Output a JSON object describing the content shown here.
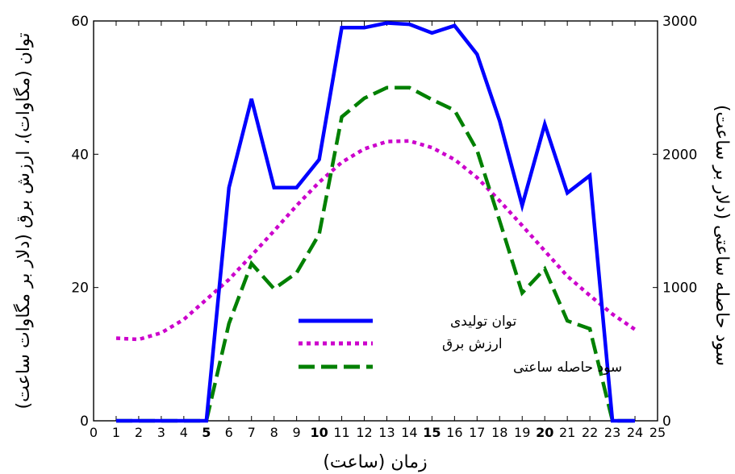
{
  "chart_data": {
    "type": "line",
    "xlabel": "زمان (ساعت)",
    "ylabel_left": "توان (مگاوات)، ارزش برق (دلار بر مگاوات ساعت)",
    "ylabel_right": "سود حاصله ساعتی (دلار بر ساعت)",
    "xlim": [
      0,
      25
    ],
    "ylim_left": [
      0,
      60
    ],
    "ylim_right": [
      0,
      3000
    ],
    "x_ticks": [
      0,
      1,
      2,
      3,
      4,
      5,
      6,
      7,
      8,
      9,
      10,
      11,
      12,
      13,
      14,
      15,
      16,
      17,
      18,
      19,
      20,
      21,
      22,
      23,
      24,
      25
    ],
    "x_ticks_bold": [
      5,
      10,
      15,
      20
    ],
    "y_ticks_left": [
      0,
      20,
      40,
      60
    ],
    "y_ticks_right": [
      0,
      1000,
      2000,
      3000
    ],
    "grid": false,
    "legend_position": "center",
    "series": [
      {
        "name": "توان تولیدی",
        "axis": "left",
        "color": "#0000ff",
        "style": "solid",
        "x": [
          1,
          2,
          3,
          4,
          5,
          6,
          7,
          8,
          9,
          10,
          11,
          12,
          13,
          14,
          15,
          16,
          17,
          18,
          19,
          20,
          21,
          22,
          23,
          24
        ],
        "values": [
          0,
          0,
          0,
          0,
          0,
          35,
          48.3,
          35,
          35,
          39.2,
          59,
          59,
          59.7,
          59.5,
          58.2,
          59.3,
          55,
          45,
          32.3,
          44.5,
          34.2,
          36.8,
          0,
          0
        ]
      },
      {
        "name": "ارزش برق",
        "axis": "left",
        "color": "#cc00cc",
        "style": "dotted",
        "x": [
          1,
          2,
          3,
          4,
          5,
          6,
          7,
          8,
          9,
          10,
          11,
          12,
          13,
          14,
          15,
          16,
          17,
          18,
          19,
          20,
          21,
          22,
          23,
          24
        ],
        "values": [
          12.4,
          12.2,
          13.2,
          15.2,
          18.2,
          21.2,
          24.8,
          28.5,
          32.3,
          35.8,
          38.8,
          40.8,
          41.9,
          42.0,
          41.0,
          39.2,
          36.5,
          33.0,
          29.3,
          25.5,
          21.7,
          18.8,
          16.0,
          13.7
        ]
      },
      {
        "name": "سود حاصله ساعتی",
        "axis": "right",
        "color": "#008000",
        "style": "dashed",
        "x": [
          1,
          2,
          3,
          4,
          5,
          6,
          7,
          8,
          9,
          10,
          11,
          12,
          13,
          14,
          15,
          16,
          17,
          18,
          19,
          20,
          21,
          22,
          23,
          24
        ],
        "values": [
          0,
          0,
          0,
          0,
          0,
          730,
          1180,
          990,
          1110,
          1400,
          2280,
          2420,
          2500,
          2500,
          2410,
          2330,
          2030,
          1500,
          960,
          1140,
          750,
          690,
          0,
          0
        ]
      }
    ]
  }
}
